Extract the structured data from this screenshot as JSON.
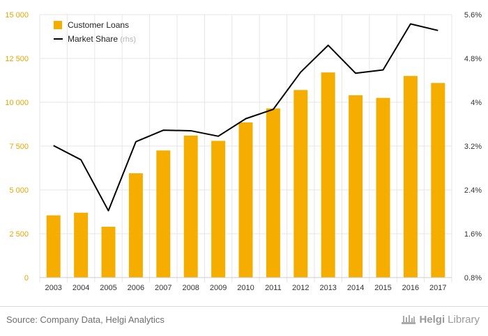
{
  "chart_data": {
    "type": "bar+line",
    "categories": [
      "2003",
      "2004",
      "2005",
      "2006",
      "2007",
      "2008",
      "2009",
      "2010",
      "2011",
      "2012",
      "2013",
      "2014",
      "2015",
      "2016",
      "2017"
    ],
    "series": [
      {
        "name": "Customer Loans",
        "type": "bar",
        "axis": "left",
        "color": "#f5ae00",
        "values": [
          3550,
          3700,
          2900,
          5950,
          7250,
          8100,
          7800,
          8850,
          9650,
          10700,
          11700,
          10400,
          10250,
          11500,
          11100
        ]
      },
      {
        "name": "Market Share",
        "type": "line",
        "axis": "right",
        "color": "#000000",
        "values": [
          3.21,
          2.95,
          2.02,
          3.28,
          3.49,
          3.48,
          3.38,
          3.7,
          3.87,
          4.55,
          5.04,
          4.53,
          4.59,
          5.43,
          5.31
        ]
      }
    ],
    "left_axis": {
      "min": 0,
      "max": 15000,
      "ticks": [
        0,
        2500,
        5000,
        7500,
        10000,
        12500,
        15000
      ],
      "tick_labels": [
        "0",
        "2 500",
        "5 000",
        "7 500",
        "10 000",
        "12 500",
        "15 000"
      ]
    },
    "right_axis": {
      "min": 0.8,
      "max": 5.6,
      "ticks": [
        0.8,
        1.6,
        2.4,
        3.2,
        4.0,
        4.8,
        5.6
      ],
      "tick_labels": [
        "0.8%",
        "1.6%",
        "2.4%",
        "3.2%",
        "4%",
        "4.8%",
        "5.6%"
      ]
    },
    "legend": [
      {
        "label": "Customer Loans",
        "suffix": ""
      },
      {
        "label": "Market Share",
        "suffix": "(rhs)"
      }
    ],
    "legend_position": "top-left",
    "grid": true
  },
  "footer": {
    "source": "Source: Company Data, Helgi Analytics",
    "brand_bold": "Helgi",
    "brand_rest": "Library"
  },
  "colors": {
    "bar": "#f5ae00",
    "line": "#000000",
    "left_tick": "#e7a600",
    "right_tick": "#333333",
    "grid": "#e6e6e6"
  }
}
